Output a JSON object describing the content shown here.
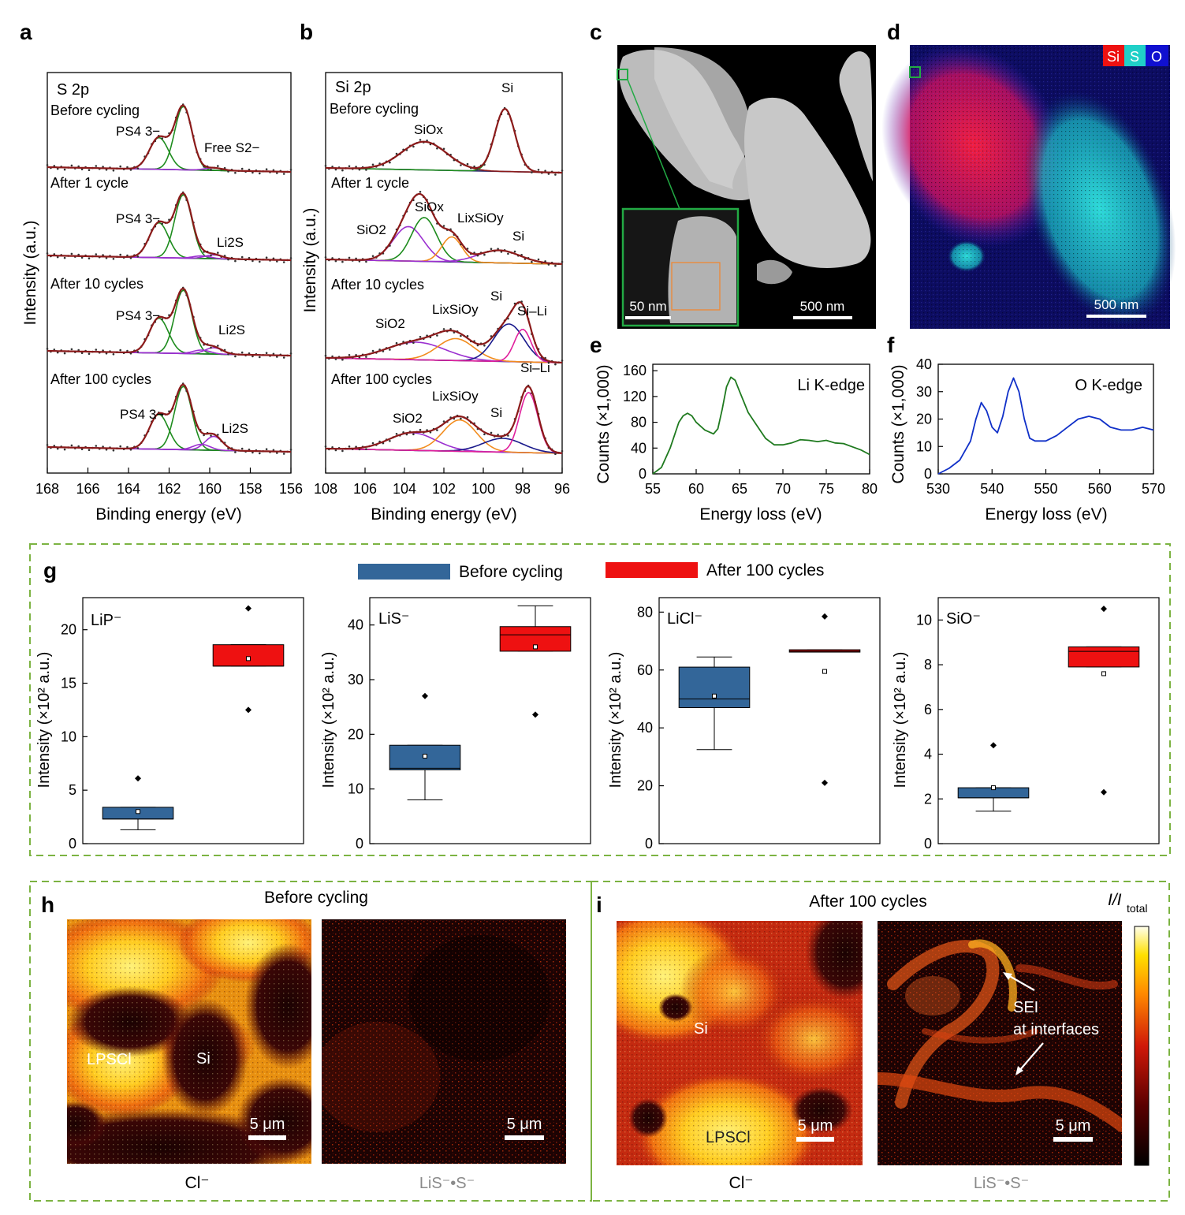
{
  "panel_letters": {
    "a": "a",
    "b": "b",
    "c": "c",
    "d": "d",
    "e": "e",
    "f": "f",
    "g": "g",
    "h": "h",
    "i": "i"
  },
  "chart_data": [
    {
      "panel": "a",
      "type": "line",
      "title": "S 2p",
      "xlabel": "Binding energy (eV)",
      "ylabel": "Intensity (a.u.)",
      "xlim": [
        168,
        156
      ],
      "xticks": [
        168,
        166,
        164,
        162,
        160,
        158,
        156
      ],
      "spectra": [
        {
          "label": "Before cycling",
          "annotations": [
            "PS4 3−",
            "Free S2−"
          ],
          "components": [
            {
              "center": 162.5,
              "fwhm": 1.1,
              "height": 0.5
            },
            {
              "center": 161.3,
              "fwhm": 1.0,
              "height": 1.0
            },
            {
              "center": 159.8,
              "fwhm": 1.0,
              "height": 0.04
            }
          ]
        },
        {
          "label": "After 1 cycle",
          "annotations": [
            "PS4 3−",
            "Li2S"
          ],
          "components": [
            {
              "center": 162.5,
              "fwhm": 1.1,
              "height": 0.55
            },
            {
              "center": 161.3,
              "fwhm": 1.0,
              "height": 1.0
            },
            {
              "center": 160.4,
              "fwhm": 1.0,
              "height": 0.04
            },
            {
              "center": 159.8,
              "fwhm": 1.0,
              "height": 0.06
            }
          ]
        },
        {
          "label": "After 10 cycles",
          "annotations": [
            "PS4 3−",
            "Li2S"
          ],
          "components": [
            {
              "center": 162.5,
              "fwhm": 1.1,
              "height": 0.55
            },
            {
              "center": 161.3,
              "fwhm": 1.0,
              "height": 1.0
            },
            {
              "center": 160.4,
              "fwhm": 1.0,
              "height": 0.06
            },
            {
              "center": 159.8,
              "fwhm": 1.0,
              "height": 0.1
            }
          ]
        },
        {
          "label": "After 100 cycles",
          "annotations": [
            "PS4 3−",
            "Li2S"
          ],
          "components": [
            {
              "center": 162.5,
              "fwhm": 1.1,
              "height": 0.55
            },
            {
              "center": 161.3,
              "fwhm": 1.0,
              "height": 1.0
            },
            {
              "center": 160.4,
              "fwhm": 1.0,
              "height": 0.09
            },
            {
              "center": 159.8,
              "fwhm": 1.0,
              "height": 0.22
            }
          ]
        }
      ]
    },
    {
      "panel": "b",
      "type": "line",
      "title": "Si 2p",
      "xlabel": "Binding energy (eV)",
      "ylabel": "Intensity (a.u.)",
      "xlim": [
        108,
        96
      ],
      "xticks": [
        108,
        106,
        104,
        102,
        100,
        98,
        96
      ],
      "spectra": [
        {
          "label": "Before cycling",
          "annotations": [
            "SiOx",
            "Si"
          ],
          "components": [
            {
              "center": 103.0,
              "fwhm": 2.7,
              "height": 0.45
            },
            {
              "center": 98.9,
              "fwhm": 1.2,
              "height": 1.0
            }
          ]
        },
        {
          "label": "After 1 cycle",
          "annotations": [
            "SiO2",
            "SiOx",
            "LixSiOy",
            "Si"
          ],
          "components": [
            {
              "center": 103.8,
              "fwhm": 1.8,
              "height": 0.55
            },
            {
              "center": 103.0,
              "fwhm": 1.5,
              "height": 0.7
            },
            {
              "center": 101.6,
              "fwhm": 1.2,
              "height": 0.4
            },
            {
              "center": 99.2,
              "fwhm": 2.5,
              "height": 0.2
            }
          ]
        },
        {
          "label": "After 10 cycles",
          "annotations": [
            "SiO2",
            "LixSiOy",
            "Si",
            "Si–Li"
          ],
          "components": [
            {
              "center": 103.4,
              "fwhm": 3.5,
              "height": 0.28
            },
            {
              "center": 101.4,
              "fwhm": 2.2,
              "height": 0.35
            },
            {
              "center": 98.7,
              "fwhm": 1.8,
              "height": 0.6
            },
            {
              "center": 98.0,
              "fwhm": 1.0,
              "height": 0.52
            }
          ]
        },
        {
          "label": "After 100 cycles",
          "annotations": [
            "SiO2",
            "LixSiOy",
            "Si",
            "Si–Li"
          ],
          "components": [
            {
              "center": 103.6,
              "fwhm": 2.8,
              "height": 0.28
            },
            {
              "center": 101.2,
              "fwhm": 2.0,
              "height": 0.5
            },
            {
              "center": 99.0,
              "fwhm": 2.4,
              "height": 0.22
            },
            {
              "center": 97.7,
              "fwhm": 1.1,
              "height": 0.96
            }
          ]
        }
      ]
    },
    {
      "panel": "e",
      "type": "line",
      "title": "Li K-edge",
      "xlabel": "Energy loss (eV)",
      "ylabel": "Counts (×1,000)",
      "xlim": [
        55,
        80
      ],
      "ylim": [
        0,
        170
      ],
      "xticks": [
        55,
        60,
        65,
        70,
        75,
        80
      ],
      "yticks": [
        0,
        40,
        80,
        120,
        160
      ],
      "x": [
        55,
        56,
        57,
        58,
        58.5,
        59,
        59.5,
        60,
        61,
        62,
        62.5,
        63,
        63.5,
        64,
        64.5,
        65,
        66,
        67,
        68,
        69,
        70,
        71,
        72,
        73,
        74,
        75,
        76,
        77,
        78,
        79,
        80
      ],
      "y": [
        0,
        10,
        40,
        80,
        90,
        94,
        90,
        80,
        68,
        62,
        70,
        100,
        135,
        150,
        145,
        128,
        95,
        75,
        55,
        45,
        45,
        48,
        53,
        52,
        50,
        52,
        48,
        47,
        42,
        37,
        30
      ]
    },
    {
      "panel": "f",
      "type": "line",
      "title": "O K-edge",
      "xlabel": "Energy loss (eV)",
      "ylabel": "Counts (×1,000)",
      "xlim": [
        530,
        570
      ],
      "ylim": [
        0,
        40
      ],
      "xticks": [
        530,
        540,
        550,
        560,
        570
      ],
      "yticks": [
        0,
        10,
        20,
        30,
        40
      ],
      "x": [
        530,
        532,
        534,
        536,
        537,
        538,
        539,
        540,
        541,
        542,
        543,
        544,
        545,
        546,
        547,
        548,
        549,
        550,
        552,
        554,
        556,
        558,
        560,
        562,
        564,
        566,
        568,
        570
      ],
      "y": [
        0,
        2,
        5,
        12,
        20,
        26,
        23,
        17,
        15,
        21,
        30,
        35,
        30,
        20,
        13,
        12,
        12,
        12,
        14,
        17,
        20,
        21,
        20,
        17,
        16,
        16,
        17,
        16
      ]
    },
    {
      "panel": "g",
      "type": "box",
      "legend": [
        "Before cycling",
        "After 100 cycles"
      ],
      "ylabel": "Intensity (×10² a.u.)",
      "subplots": [
        {
          "species": "LiP⁻",
          "ylim": [
            0,
            23
          ],
          "yticks": [
            0,
            5,
            10,
            15,
            20
          ],
          "before": {
            "q1": 2.3,
            "median": 2.3,
            "q3": 3.4,
            "mean": 3.0,
            "whisker_low": 1.3,
            "whisker_high": 3.4,
            "outliers": [
              6.1
            ]
          },
          "after": {
            "q1": 16.6,
            "median": 16.6,
            "q3": 18.6,
            "mean": 17.3,
            "whisker_low": 16.6,
            "whisker_high": 18.6,
            "outliers": [
              22.0,
              12.5
            ]
          }
        },
        {
          "species": "LiS⁻",
          "ylim": [
            0,
            45
          ],
          "yticks": [
            0,
            10,
            20,
            30,
            40
          ],
          "before": {
            "q1": 13.5,
            "median": 13.8,
            "q3": 18.0,
            "mean": 16.0,
            "whisker_low": 8.0,
            "whisker_high": 18.0,
            "outliers": [
              27.0
            ]
          },
          "after": {
            "q1": 35.2,
            "median": 38.2,
            "q3": 39.7,
            "mean": 36.0,
            "whisker_low": 35.2,
            "whisker_high": 43.5,
            "outliers": [
              23.6
            ]
          }
        },
        {
          "species": "LiCl⁻",
          "ylim": [
            0,
            85
          ],
          "yticks": [
            0,
            20,
            40,
            60,
            80
          ],
          "before": {
            "q1": 47.0,
            "median": 50.0,
            "q3": 61.0,
            "mean": 51.0,
            "whisker_low": 32.5,
            "whisker_high": 64.5,
            "outliers": []
          },
          "after": {
            "q1": 66.2,
            "median": 66.5,
            "q3": 67.0,
            "mean": 59.5,
            "whisker_low": 66.2,
            "whisker_high": 67.0,
            "outliers": [
              78.5,
              21.0
            ]
          }
        },
        {
          "species": "SiO⁻",
          "ylim": [
            0,
            11
          ],
          "yticks": [
            0,
            2,
            4,
            6,
            8,
            10
          ],
          "before": {
            "q1": 2.05,
            "median": 2.05,
            "q3": 2.5,
            "mean": 2.5,
            "whisker_low": 1.45,
            "whisker_high": 2.5,
            "outliers": [
              4.4
            ]
          },
          "after": {
            "q1": 7.9,
            "median": 8.6,
            "q3": 8.8,
            "mean": 7.6,
            "whisker_low": 7.9,
            "whisker_high": 8.8,
            "outliers": [
              10.5,
              2.3
            ]
          }
        }
      ]
    }
  ],
  "micro_c": {
    "scale_main": "500 nm",
    "scale_inset": "50 nm"
  },
  "micro_d": {
    "legend": [
      "Si",
      "S",
      "O"
    ],
    "scale": "500 nm"
  },
  "tof_h": {
    "title": "Before cycling",
    "maps": [
      {
        "caption": "Cl⁻",
        "scale": "5 μm",
        "labels": [
          "LPSCl",
          "Si"
        ]
      },
      {
        "caption": "LiS⁻•S⁻",
        "scale": "5 μm",
        "labels": []
      }
    ]
  },
  "tof_i": {
    "title": "After 100 cycles",
    "maps": [
      {
        "caption": "Cl⁻",
        "scale": "5 μm",
        "labels": [
          "Si",
          "LPSCl"
        ]
      },
      {
        "caption": "LiS⁻•S⁻",
        "scale": "5 μm",
        "labels": [
          "SEI",
          "at interfaces"
        ]
      }
    ],
    "colorbar_label_I": "I/I",
    "colorbar_label_sub": "total"
  },
  "colors": {
    "line_fit": "#8b1a1a",
    "data_points": "#333333",
    "baseline": "#2b2b6b",
    "green": "#1e8c1e",
    "purple": "#9b30d0",
    "orange": "#f28c1e",
    "navy": "#1a1a8c",
    "magenta": "#e0209c",
    "spectrum_e": "#1f7a1f",
    "spectrum_f": "#1030c8",
    "before_box": "#336699",
    "after_box": "#ee1111",
    "frame_dash": "#7cb342",
    "inset_green": "#22aa44",
    "inset_orange": "#ee8833"
  }
}
